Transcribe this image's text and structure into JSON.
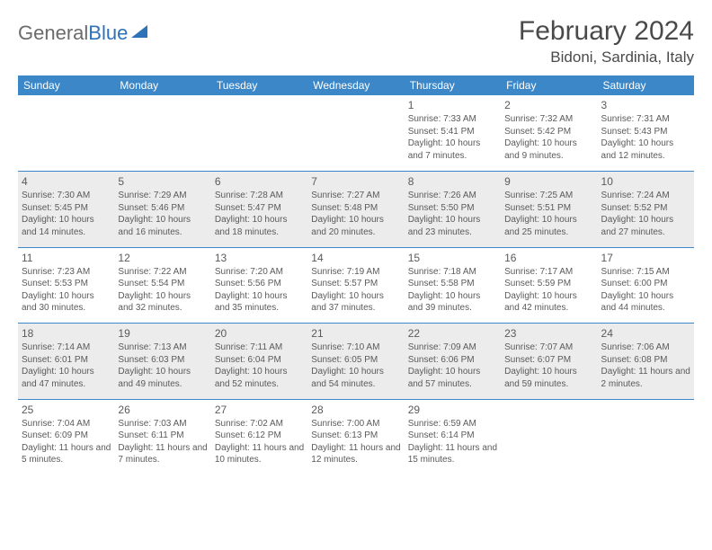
{
  "logo": {
    "part1": "General",
    "part2": "Blue"
  },
  "title": "February 2024",
  "location": "Bidoni, Sardinia, Italy",
  "day_headers": [
    "Sunday",
    "Monday",
    "Tuesday",
    "Wednesday",
    "Thursday",
    "Friday",
    "Saturday"
  ],
  "weeks": [
    [
      null,
      null,
      null,
      null,
      {
        "n": "1",
        "sr": "7:33 AM",
        "ss": "5:41 PM",
        "dl": "10 hours and 7 minutes."
      },
      {
        "n": "2",
        "sr": "7:32 AM",
        "ss": "5:42 PM",
        "dl": "10 hours and 9 minutes."
      },
      {
        "n": "3",
        "sr": "7:31 AM",
        "ss": "5:43 PM",
        "dl": "10 hours and 12 minutes."
      }
    ],
    [
      {
        "n": "4",
        "sr": "7:30 AM",
        "ss": "5:45 PM",
        "dl": "10 hours and 14 minutes."
      },
      {
        "n": "5",
        "sr": "7:29 AM",
        "ss": "5:46 PM",
        "dl": "10 hours and 16 minutes."
      },
      {
        "n": "6",
        "sr": "7:28 AM",
        "ss": "5:47 PM",
        "dl": "10 hours and 18 minutes."
      },
      {
        "n": "7",
        "sr": "7:27 AM",
        "ss": "5:48 PM",
        "dl": "10 hours and 20 minutes."
      },
      {
        "n": "8",
        "sr": "7:26 AM",
        "ss": "5:50 PM",
        "dl": "10 hours and 23 minutes."
      },
      {
        "n": "9",
        "sr": "7:25 AM",
        "ss": "5:51 PM",
        "dl": "10 hours and 25 minutes."
      },
      {
        "n": "10",
        "sr": "7:24 AM",
        "ss": "5:52 PM",
        "dl": "10 hours and 27 minutes."
      }
    ],
    [
      {
        "n": "11",
        "sr": "7:23 AM",
        "ss": "5:53 PM",
        "dl": "10 hours and 30 minutes."
      },
      {
        "n": "12",
        "sr": "7:22 AM",
        "ss": "5:54 PM",
        "dl": "10 hours and 32 minutes."
      },
      {
        "n": "13",
        "sr": "7:20 AM",
        "ss": "5:56 PM",
        "dl": "10 hours and 35 minutes."
      },
      {
        "n": "14",
        "sr": "7:19 AM",
        "ss": "5:57 PM",
        "dl": "10 hours and 37 minutes."
      },
      {
        "n": "15",
        "sr": "7:18 AM",
        "ss": "5:58 PM",
        "dl": "10 hours and 39 minutes."
      },
      {
        "n": "16",
        "sr": "7:17 AM",
        "ss": "5:59 PM",
        "dl": "10 hours and 42 minutes."
      },
      {
        "n": "17",
        "sr": "7:15 AM",
        "ss": "6:00 PM",
        "dl": "10 hours and 44 minutes."
      }
    ],
    [
      {
        "n": "18",
        "sr": "7:14 AM",
        "ss": "6:01 PM",
        "dl": "10 hours and 47 minutes."
      },
      {
        "n": "19",
        "sr": "7:13 AM",
        "ss": "6:03 PM",
        "dl": "10 hours and 49 minutes."
      },
      {
        "n": "20",
        "sr": "7:11 AM",
        "ss": "6:04 PM",
        "dl": "10 hours and 52 minutes."
      },
      {
        "n": "21",
        "sr": "7:10 AM",
        "ss": "6:05 PM",
        "dl": "10 hours and 54 minutes."
      },
      {
        "n": "22",
        "sr": "7:09 AM",
        "ss": "6:06 PM",
        "dl": "10 hours and 57 minutes."
      },
      {
        "n": "23",
        "sr": "7:07 AM",
        "ss": "6:07 PM",
        "dl": "10 hours and 59 minutes."
      },
      {
        "n": "24",
        "sr": "7:06 AM",
        "ss": "6:08 PM",
        "dl": "11 hours and 2 minutes."
      }
    ],
    [
      {
        "n": "25",
        "sr": "7:04 AM",
        "ss": "6:09 PM",
        "dl": "11 hours and 5 minutes."
      },
      {
        "n": "26",
        "sr": "7:03 AM",
        "ss": "6:11 PM",
        "dl": "11 hours and 7 minutes."
      },
      {
        "n": "27",
        "sr": "7:02 AM",
        "ss": "6:12 PM",
        "dl": "11 hours and 10 minutes."
      },
      {
        "n": "28",
        "sr": "7:00 AM",
        "ss": "6:13 PM",
        "dl": "11 hours and 12 minutes."
      },
      {
        "n": "29",
        "sr": "6:59 AM",
        "ss": "6:14 PM",
        "dl": "11 hours and 15 minutes."
      },
      null,
      null
    ]
  ],
  "labels": {
    "sunrise": "Sunrise:",
    "sunset": "Sunset:",
    "daylight": "Daylight:"
  },
  "colors": {
    "header_bg": "#3b87c8",
    "header_text": "#ffffff",
    "alt_row_bg": "#ececec",
    "text": "#5a5a5a",
    "separator": "#3b87c8"
  }
}
